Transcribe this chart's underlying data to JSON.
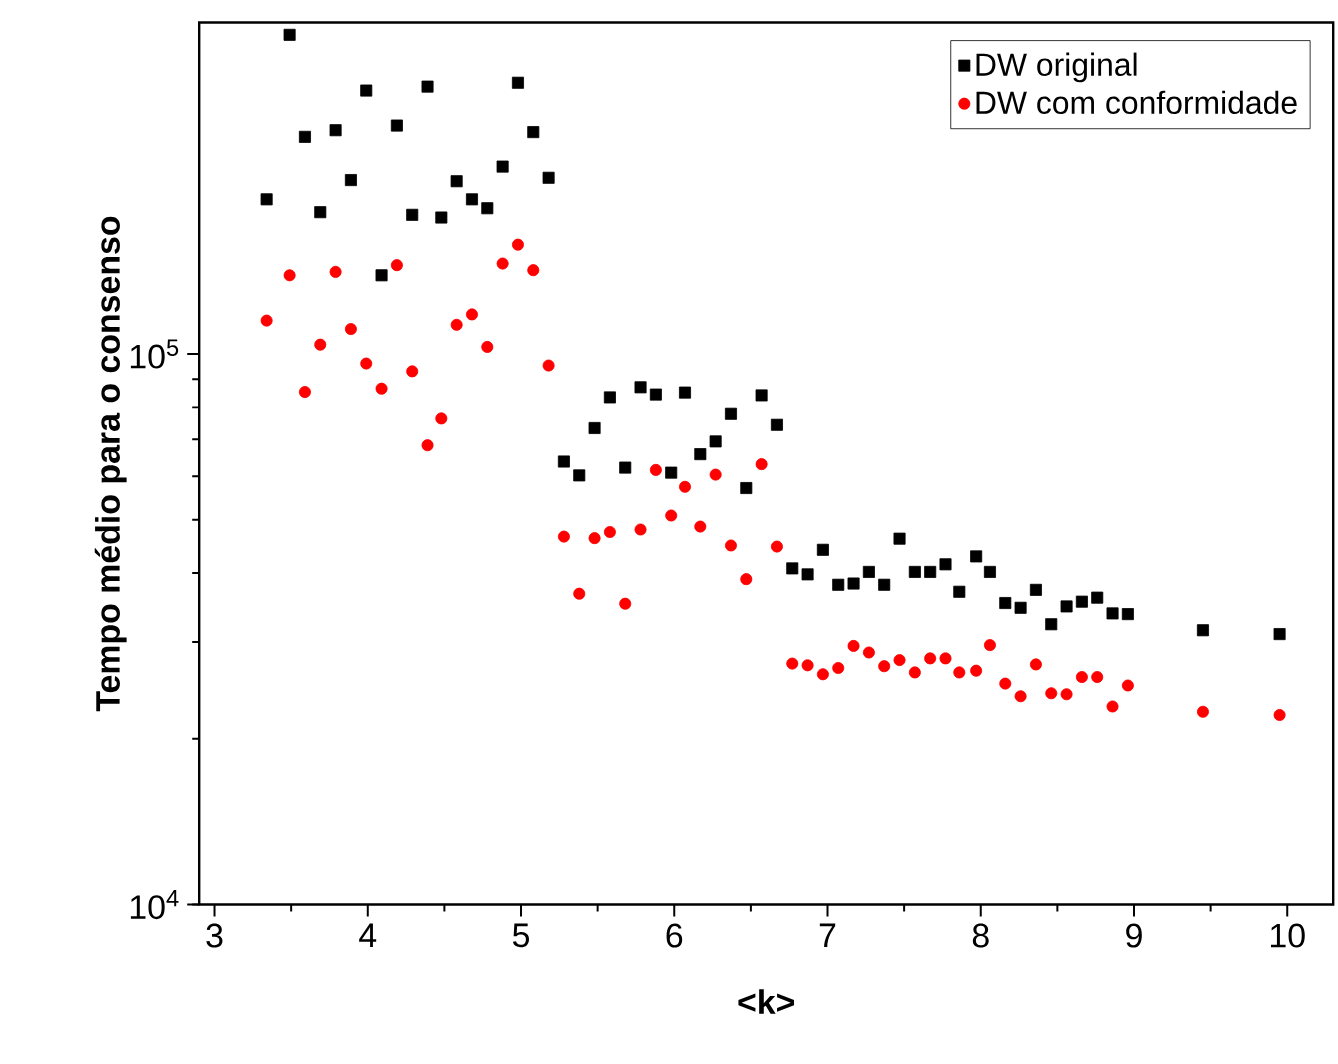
{
  "chart_data": {
    "type": "scatter",
    "xlabel": "<k>",
    "ylabel": "Tempo médio para o consenso",
    "log": "y",
    "grid": false,
    "legend": "top right",
    "xlim": [
      2.9,
      10.3
    ],
    "xticks": [
      3,
      4,
      5,
      6,
      7,
      8,
      9,
      10
    ],
    "ylim": [
      10000,
      400000
    ],
    "yticks": [
      {
        "value": 10000,
        "label": "10$^{4}$"
      },
      {
        "value": 100000,
        "label": "10$^{5}$"
      }
    ],
    "series": [
      {
        "name": "DW original",
        "color": "#000000",
        "marker": "square",
        "x": [
          3.34,
          3.49,
          3.59,
          3.69,
          3.79,
          3.89,
          3.99,
          4.09,
          4.19,
          4.29,
          4.39,
          4.48,
          4.58,
          4.68,
          4.78,
          4.88,
          4.98,
          5.08,
          5.18,
          5.28,
          5.38,
          5.48,
          5.58,
          5.68,
          5.78,
          5.88,
          5.98,
          6.07,
          6.17,
          6.27,
          6.37,
          6.47,
          6.57,
          6.67,
          6.77,
          6.87,
          6.97,
          7.07,
          7.17,
          7.27,
          7.37,
          7.47,
          7.57,
          7.67,
          7.77,
          7.86,
          7.97,
          8.06,
          8.16,
          8.26,
          8.36,
          8.46,
          8.56,
          8.66,
          8.76,
          8.86,
          8.96,
          9.45,
          9.95
        ],
        "values": [
          191000,
          380000,
          248000,
          181000,
          255000,
          207000,
          301000,
          139000,
          260000,
          179000,
          306000,
          177000,
          206000,
          191000,
          184000,
          219000,
          311000,
          253000,
          209000,
          63800,
          60200,
          73400,
          83400,
          62200,
          87000,
          84400,
          60900,
          85100,
          65800,
          69400,
          77900,
          57100,
          84100,
          74400,
          40800,
          39800,
          44100,
          38100,
          38300,
          40200,
          38100,
          46200,
          40200,
          40200,
          41500,
          37000,
          42900,
          40200,
          35300,
          34600,
          37300,
          32300,
          34800,
          35500,
          36100,
          33800,
          33700,
          31500,
          31000
        ]
      },
      {
        "name": "DW com conformidade",
        "color": "#ff0000",
        "marker": "circle",
        "x": [
          3.34,
          3.49,
          3.59,
          3.69,
          3.79,
          3.89,
          3.99,
          4.09,
          4.19,
          4.29,
          4.39,
          4.48,
          4.58,
          4.68,
          4.78,
          4.88,
          4.98,
          5.08,
          5.18,
          5.28,
          5.38,
          5.48,
          5.58,
          5.68,
          5.78,
          5.88,
          5.98,
          6.07,
          6.17,
          6.27,
          6.37,
          6.47,
          6.57,
          6.67,
          6.77,
          6.87,
          6.97,
          7.07,
          7.17,
          7.27,
          7.37,
          7.47,
          7.57,
          7.67,
          7.77,
          7.86,
          7.97,
          8.06,
          8.16,
          8.26,
          8.36,
          8.46,
          8.56,
          8.66,
          8.76,
          8.86,
          8.96,
          9.45,
          9.95
        ],
        "values": [
          115000,
          139000,
          85300,
          104000,
          141000,
          111000,
          96100,
          86500,
          145000,
          93000,
          68300,
          76400,
          113000,
          118000,
          103000,
          146000,
          158000,
          142000,
          95300,
          46600,
          36700,
          46300,
          47500,
          35200,
          48000,
          61600,
          50900,
          57400,
          48600,
          60400,
          44900,
          39000,
          63100,
          44700,
          27400,
          27200,
          26200,
          26900,
          29500,
          28700,
          27100,
          27800,
          26400,
          28000,
          28000,
          26400,
          26600,
          29600,
          25200,
          23900,
          27300,
          24200,
          24100,
          25900,
          25900,
          22900,
          25000,
          22400,
          22100
        ]
      }
    ]
  }
}
